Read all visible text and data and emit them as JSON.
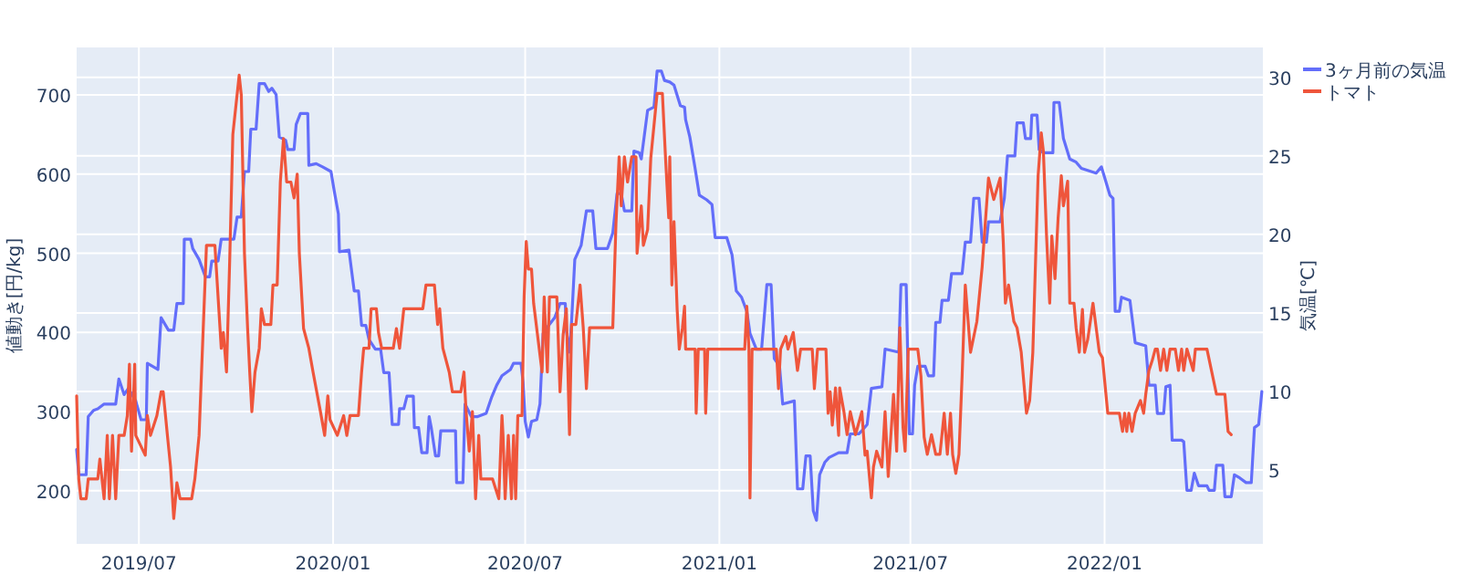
{
  "chart_data": {
    "type": "line",
    "ylabel": "値動き[円/kg]",
    "y2label": "気温[℃]",
    "grid": true,
    "legend": "top right",
    "xlim": [
      "2019-05-03",
      "2022-05-31"
    ],
    "xticks": [
      {
        "value": "2019-07-01",
        "label": "2019/07"
      },
      {
        "value": "2020-01-01",
        "label": "2020/01"
      },
      {
        "value": "2020-07-01",
        "label": "2020/07"
      },
      {
        "value": "2021-01-01",
        "label": "2021/01"
      },
      {
        "value": "2021-07-01",
        "label": "2021/07"
      },
      {
        "value": "2022-01-01",
        "label": "2022/01"
      }
    ],
    "ylim": [
      133,
      760
    ],
    "yticks": [
      200,
      300,
      400,
      500,
      600,
      700
    ],
    "y2lim": [
      0.3,
      31.9
    ],
    "y2ticks": [
      5,
      10,
      15,
      20,
      25,
      30
    ],
    "series": [
      {
        "name": "3ヶ月前の気温",
        "color": "#636efa",
        "axis": "y2",
        "x": [
          "2019-05-03",
          "2019-05-05",
          "2019-05-12",
          "2019-05-14",
          "2019-05-19",
          "2019-05-23",
          "2019-05-29",
          "2019-06-09",
          "2019-06-12",
          "2019-06-17",
          "2019-06-21",
          "2019-06-28",
          "2019-07-03",
          "2019-07-08",
          "2019-07-09",
          "2019-07-19",
          "2019-07-22",
          "2019-07-29",
          "2019-08-03",
          "2019-08-06",
          "2019-08-12",
          "2019-08-13",
          "2019-08-19",
          "2019-08-21",
          "2019-08-27",
          "2019-09-02",
          "2019-09-06",
          "2019-09-08",
          "2019-09-14",
          "2019-09-17",
          "2019-09-29",
          "2019-10-02",
          "2019-10-06",
          "2019-10-09",
          "2019-10-13",
          "2019-10-15",
          "2019-10-20",
          "2019-10-23",
          "2019-10-28",
          "2019-11-01",
          "2019-11-04",
          "2019-11-08",
          "2019-11-11",
          "2019-11-17",
          "2019-11-19",
          "2019-11-25",
          "2019-11-27",
          "2019-12-01",
          "2019-12-08",
          "2019-12-09",
          "2019-12-16",
          "2019-12-22",
          "2019-12-30",
          "2020-01-02",
          "2020-01-06",
          "2020-01-07",
          "2020-01-16",
          "2020-01-21",
          "2020-01-25",
          "2020-01-28",
          "2020-02-01",
          "2020-02-04",
          "2020-02-10",
          "2020-02-15",
          "2020-02-18",
          "2020-02-23",
          "2020-02-26",
          "2020-03-03",
          "2020-03-04",
          "2020-03-08",
          "2020-03-11",
          "2020-03-17",
          "2020-03-18",
          "2020-03-22",
          "2020-03-25",
          "2020-03-30",
          "2020-04-01",
          "2020-04-03",
          "2020-04-07",
          "2020-04-10",
          "2020-04-12",
          "2020-04-26",
          "2020-04-27",
          "2020-05-03",
          "2020-05-05",
          "2020-05-11",
          "2020-05-17",
          "2020-05-25",
          "2020-05-30",
          "2020-06-04",
          "2020-06-09",
          "2020-06-17",
          "2020-06-20",
          "2020-06-27",
          "2020-06-29",
          "2020-07-01",
          "2020-07-04",
          "2020-07-07",
          "2020-07-12",
          "2020-07-15",
          "2020-07-18",
          "2020-07-22",
          "2020-07-29",
          "2020-08-03",
          "2020-08-08",
          "2020-08-09",
          "2020-08-12",
          "2020-08-14",
          "2020-08-17",
          "2020-08-23",
          "2020-08-28",
          "2020-09-03",
          "2020-09-06",
          "2020-09-17",
          "2020-09-22",
          "2020-09-26",
          "2020-09-30",
          "2020-10-03",
          "2020-10-10",
          "2020-10-12",
          "2020-10-17",
          "2020-10-19",
          "2020-10-25",
          "2020-10-31",
          "2020-11-03",
          "2020-11-07",
          "2020-11-10",
          "2020-11-15",
          "2020-11-19",
          "2020-11-25",
          "2020-11-29",
          "2020-11-30",
          "2020-12-04",
          "2020-12-09",
          "2020-12-13",
          "2020-12-20",
          "2020-12-25",
          "2020-12-28",
          "2021-01-08",
          "2021-01-13",
          "2021-01-17",
          "2021-01-22",
          "2021-01-27",
          "2021-01-30",
          "2021-02-05",
          "2021-02-10",
          "2021-02-15",
          "2021-02-19",
          "2021-02-22",
          "2021-02-27",
          "2021-03-02",
          "2021-03-13",
          "2021-03-16",
          "2021-03-21",
          "2021-03-24",
          "2021-03-28",
          "2021-03-31",
          "2021-04-03",
          "2021-04-06",
          "2021-04-11",
          "2021-04-15",
          "2021-04-24",
          "2021-05-02",
          "2021-05-05",
          "2021-05-13",
          "2021-05-16",
          "2021-05-21",
          "2021-05-25",
          "2021-06-04",
          "2021-06-07",
          "2021-06-20",
          "2021-06-22",
          "2021-06-27",
          "2021-06-30",
          "2021-07-03",
          "2021-07-05",
          "2021-07-08",
          "2021-07-15",
          "2021-07-18",
          "2021-07-23",
          "2021-07-25",
          "2021-07-29",
          "2021-07-31",
          "2021-08-06",
          "2021-08-09",
          "2021-08-19",
          "2021-08-22",
          "2021-08-27",
          "2021-08-30",
          "2021-09-04",
          "2021-09-07",
          "2021-09-11",
          "2021-09-13",
          "2021-09-24",
          "2021-09-28",
          "2021-10-01",
          "2021-10-08",
          "2021-10-10",
          "2021-10-16",
          "2021-10-18",
          "2021-10-23",
          "2021-10-24",
          "2021-10-29",
          "2021-10-31",
          "2021-11-04",
          "2021-11-13",
          "2021-11-14",
          "2021-11-19",
          "2021-11-23",
          "2021-11-29",
          "2021-12-05",
          "2021-12-10",
          "2021-12-24",
          "2021-12-29",
          "2022-01-02",
          "2022-01-06",
          "2022-01-09",
          "2022-01-11",
          "2022-01-15",
          "2022-01-17",
          "2022-01-25",
          "2022-01-30",
          "2022-02-09",
          "2022-02-12",
          "2022-02-18",
          "2022-02-20",
          "2022-02-26",
          "2022-02-28",
          "2022-03-04",
          "2022-03-06",
          "2022-03-15",
          "2022-03-17",
          "2022-03-20",
          "2022-03-24",
          "2022-03-27",
          "2022-03-31",
          "2022-04-08",
          "2022-04-10",
          "2022-04-15",
          "2022-04-17",
          "2022-04-23",
          "2022-04-25",
          "2022-05-01",
          "2022-05-04",
          "2022-05-09",
          "2022-05-15",
          "2022-05-20",
          "2022-05-23",
          "2022-05-27",
          "2022-05-30"
        ],
        "values": [
          6.3,
          4.7,
          4.7,
          8.4,
          8.8,
          8.9,
          9.2,
          9.2,
          10.8,
          9.8,
          10.2,
          9.4,
          8.2,
          8.2,
          11.8,
          11.4,
          14.7,
          13.9,
          13.9,
          15.6,
          15.6,
          19.7,
          19.7,
          19.1,
          18.4,
          17.3,
          17.3,
          18.3,
          18.3,
          19.7,
          19.7,
          21.1,
          21.1,
          24.0,
          24.0,
          26.7,
          26.7,
          29.6,
          29.6,
          29.1,
          29.3,
          28.9,
          26.2,
          26.0,
          25.4,
          25.4,
          27.0,
          27.7,
          27.7,
          24.4,
          24.5,
          24.3,
          24.0,
          22.8,
          21.3,
          18.9,
          19.0,
          16.4,
          16.4,
          14.2,
          14.2,
          13.3,
          12.7,
          12.7,
          11.2,
          11.2,
          7.9,
          7.9,
          8.9,
          8.9,
          9.7,
          9.7,
          7.7,
          7.7,
          6.1,
          6.1,
          8.4,
          7.7,
          5.9,
          5.9,
          7.5,
          7.5,
          4.2,
          4.2,
          9.2,
          8.4,
          8.4,
          8.6,
          9.6,
          10.4,
          11.0,
          11.4,
          11.8,
          11.8,
          10.6,
          8.1,
          7.1,
          8.1,
          8.2,
          9.2,
          13.7,
          14.1,
          14.7,
          15.6,
          15.6,
          13.9,
          12.5,
          14.5,
          18.4,
          19.3,
          21.5,
          21.5,
          19.1,
          19.1,
          20.1,
          22.6,
          22.6,
          21.5,
          21.5,
          25.3,
          25.2,
          24.8,
          27.9,
          28.1,
          30.4,
          30.4,
          29.8,
          29.7,
          29.5,
          28.2,
          28.1,
          27.3,
          26.2,
          24.2,
          22.5,
          22.2,
          21.9,
          19.8,
          19.8,
          18.7,
          16.4,
          16.0,
          15.1,
          13.7,
          12.7,
          12.7,
          16.8,
          16.8,
          12.1,
          11.6,
          9.2,
          9.4,
          3.8,
          3.8,
          5.9,
          5.9,
          2.4,
          1.8,
          4.7,
          5.5,
          5.8,
          6.1,
          6.1,
          7.3,
          7.3,
          7.5,
          7.9,
          10.2,
          10.3,
          12.7,
          12.5,
          16.8,
          16.8,
          7.3,
          7.3,
          10.4,
          11.6,
          11.6,
          11.0,
          11.0,
          14.4,
          14.4,
          15.8,
          15.8,
          17.5,
          17.5,
          19.5,
          19.5,
          22.3,
          22.3,
          19.5,
          19.5,
          20.8,
          20.8,
          22.3,
          25.0,
          25.0,
          27.1,
          27.1,
          26.1,
          26.1,
          27.6,
          27.6,
          25.4,
          25.2,
          25.2,
          28.4,
          28.4,
          26.1,
          24.8,
          24.6,
          24.2,
          23.9,
          24.3,
          23.4,
          22.5,
          22.3,
          15.1,
          15.1,
          16.0,
          15.8,
          13.1,
          12.9,
          10.4,
          10.4,
          8.6,
          8.6,
          10.3,
          10.4,
          6.9,
          6.9,
          6.8,
          3.7,
          3.7,
          4.8,
          4.0,
          4.0,
          3.7,
          3.7,
          5.3,
          5.3,
          3.3,
          3.3,
          4.7,
          4.5,
          4.2,
          4.2,
          7.7,
          7.9,
          10.0
        ]
      },
      {
        "name": "トマト",
        "color": "#ef553b",
        "x": [
          "2019-05-03",
          "2019-05-05",
          "2019-05-07",
          "2019-05-12",
          "2019-05-14",
          "2019-05-23",
          "2019-05-25",
          "2019-05-29",
          "2019-06-01",
          "2019-06-03",
          "2019-06-06",
          "2019-06-09",
          "2019-06-12",
          "2019-06-17",
          "2019-06-20",
          "2019-06-22",
          "2019-06-24",
          "2019-06-27",
          "2019-06-28",
          "2019-07-07",
          "2019-07-09",
          "2019-07-12",
          "2019-07-18",
          "2019-07-22",
          "2019-07-24",
          "2019-07-28",
          "2019-07-31",
          "2019-08-03",
          "2019-08-06",
          "2019-08-09",
          "2019-08-20",
          "2019-08-23",
          "2019-08-27",
          "2019-09-03",
          "2019-09-11",
          "2019-09-17",
          "2019-09-19",
          "2019-09-22",
          "2019-09-25",
          "2019-09-28",
          "2019-10-04",
          "2019-10-06",
          "2019-10-09",
          "2019-10-12",
          "2019-10-14",
          "2019-10-16",
          "2019-10-19",
          "2019-10-23",
          "2019-10-25",
          "2019-10-28",
          "2019-11-03",
          "2019-11-05",
          "2019-11-09",
          "2019-11-12",
          "2019-11-15",
          "2019-11-18",
          "2019-11-22",
          "2019-11-25",
          "2019-11-28",
          "2019-11-30",
          "2019-12-04",
          "2019-12-09",
          "2019-12-13",
          "2019-12-20",
          "2019-12-24",
          "2019-12-27",
          "2019-12-29",
          "2020-01-05",
          "2020-01-11",
          "2020-01-14",
          "2020-01-17",
          "2020-01-25",
          "2020-01-28",
          "2020-01-30",
          "2020-02-04",
          "2020-02-06",
          "2020-02-11",
          "2020-02-13",
          "2020-02-16",
          "2020-02-27",
          "2020-03-01",
          "2020-03-04",
          "2020-03-08",
          "2020-03-26",
          "2020-03-29",
          "2020-04-06",
          "2020-04-09",
          "2020-04-11",
          "2020-04-14",
          "2020-04-20",
          "2020-04-23",
          "2020-05-01",
          "2020-05-04",
          "2020-05-06",
          "2020-05-09",
          "2020-05-12",
          "2020-05-15",
          "2020-05-18",
          "2020-05-20",
          "2020-05-31",
          "2020-06-06",
          "2020-06-09",
          "2020-06-10",
          "2020-06-12",
          "2020-06-15",
          "2020-06-18",
          "2020-06-20",
          "2020-06-22",
          "2020-06-24",
          "2020-06-28",
          "2020-06-30",
          "2020-07-02",
          "2020-07-04",
          "2020-07-07",
          "2020-07-09",
          "2020-07-17",
          "2020-07-19",
          "2020-07-22",
          "2020-07-24",
          "2020-07-31",
          "2020-08-03",
          "2020-08-06",
          "2020-08-09",
          "2020-08-12",
          "2020-08-14",
          "2020-08-18",
          "2020-08-22",
          "2020-08-25",
          "2020-08-28",
          "2020-08-31",
          "2020-09-22",
          "2020-09-25",
          "2020-09-28",
          "2020-09-30",
          "2020-10-03",
          "2020-10-06",
          "2020-10-10",
          "2020-10-14",
          "2020-10-15",
          "2020-10-19",
          "2020-10-21",
          "2020-10-25",
          "2020-10-28",
          "2020-11-03",
          "2020-11-08",
          "2020-11-11",
          "2020-11-14",
          "2020-11-15",
          "2020-11-17",
          "2020-11-19",
          "2020-11-22",
          "2020-11-24",
          "2020-11-27",
          "2020-11-29",
          "2020-11-30",
          "2020-12-09",
          "2020-12-10",
          "2020-12-12",
          "2020-12-18",
          "2020-12-19",
          "2020-12-21",
          "2021-01-25",
          "2021-01-27",
          "2021-01-29",
          "2021-01-30",
          "2021-02-01",
          "2021-02-24",
          "2021-02-26",
          "2021-02-28",
          "2021-03-05",
          "2021-03-07",
          "2021-03-12",
          "2021-03-16",
          "2021-03-19",
          "2021-03-30",
          "2021-04-01",
          "2021-04-04",
          "2021-04-12",
          "2021-04-14",
          "2021-04-16",
          "2021-04-18",
          "2021-04-21",
          "2021-04-24",
          "2021-04-25",
          "2021-04-29",
          "2021-05-02",
          "2021-05-05",
          "2021-05-10",
          "2021-05-16",
          "2021-05-19",
          "2021-05-21",
          "2021-05-25",
          "2021-05-27",
          "2021-05-30",
          "2021-06-04",
          "2021-06-07",
          "2021-06-10",
          "2021-06-12",
          "2021-06-15",
          "2021-06-18",
          "2021-06-21",
          "2021-06-24",
          "2021-06-26",
          "2021-06-29",
          "2021-07-08",
          "2021-07-11",
          "2021-07-14",
          "2021-07-17",
          "2021-07-21",
          "2021-07-25",
          "2021-07-29",
          "2021-08-02",
          "2021-08-05",
          "2021-08-08",
          "2021-08-10",
          "2021-08-13",
          "2021-08-16",
          "2021-08-19",
          "2021-08-22",
          "2021-08-27",
          "2021-09-02",
          "2021-09-07",
          "2021-09-13",
          "2021-09-18",
          "2021-09-24",
          "2021-09-27",
          "2021-09-29",
          "2021-10-02",
          "2021-10-07",
          "2021-10-10",
          "2021-10-14",
          "2021-10-19",
          "2021-10-22",
          "2021-10-25",
          "2021-10-30",
          "2021-11-02",
          "2021-11-04",
          "2021-11-07",
          "2021-11-10",
          "2021-11-12",
          "2021-11-15",
          "2021-11-18",
          "2021-11-21",
          "2021-11-23",
          "2021-11-27",
          "2021-11-29",
          "2021-12-03",
          "2021-12-05",
          "2021-12-08",
          "2021-12-11",
          "2021-12-13",
          "2021-12-16",
          "2021-12-21",
          "2021-12-24",
          "2021-12-27",
          "2021-12-30",
          "2022-01-04",
          "2022-01-15",
          "2022-01-18",
          "2022-01-20",
          "2022-01-22",
          "2022-01-24",
          "2022-01-27",
          "2022-01-30",
          "2022-02-04",
          "2022-02-07",
          "2022-02-09",
          "2022-02-12",
          "2022-02-15",
          "2022-02-18",
          "2022-02-20",
          "2022-02-23",
          "2022-02-26",
          "2022-03-01",
          "2022-03-04",
          "2022-03-09",
          "2022-03-12",
          "2022-03-15",
          "2022-03-17",
          "2022-03-20",
          "2022-03-26",
          "2022-03-28",
          "2022-04-08",
          "2022-04-17",
          "2022-04-25",
          "2022-04-28",
          "2022-05-01"
        ],
        "values": [
          320,
          215,
          190,
          190,
          215,
          215,
          240,
          190,
          270,
          190,
          270,
          190,
          270,
          270,
          295,
          360,
          250,
          360,
          270,
          245,
          295,
          270,
          295,
          325,
          325,
          270,
          230,
          165,
          210,
          190,
          190,
          215,
          270,
          510,
          510,
          380,
          400,
          350,
          490,
          650,
          725,
          700,
          500,
          405,
          350,
          300,
          350,
          380,
          430,
          410,
          410,
          460,
          460,
          590,
          645,
          590,
          590,
          570,
          600,
          500,
          405,
          380,
          350,
          300,
          270,
          320,
          290,
          270,
          295,
          270,
          295,
          295,
          350,
          380,
          380,
          430,
          430,
          400,
          380,
          380,
          405,
          380,
          430,
          430,
          460,
          460,
          410,
          430,
          380,
          350,
          325,
          325,
          350,
          300,
          250,
          300,
          190,
          270,
          215,
          215,
          190,
          295,
          270,
          190,
          270,
          190,
          270,
          190,
          295,
          295,
          445,
          515,
          480,
          480,
          437,
          350,
          445,
          350,
          445,
          445,
          325,
          398,
          430,
          271,
          410,
          410,
          460,
          406,
          329,
          406,
          406,
          537,
          622,
          560,
          622,
          590,
          622,
          622,
          500,
          560,
          510,
          530,
          620,
          702,
          702,
          620,
          545,
          622,
          460,
          540,
          429,
          379,
          406,
          433,
          379,
          379,
          298,
          379,
          379,
          298,
          379,
          379,
          433,
          379,
          191,
          379,
          379,
          329,
          379,
          395,
          379,
          400,
          352,
          379,
          379,
          329,
          379,
          379,
          298,
          325,
          283,
          330,
          270,
          330,
          300,
          271,
          300,
          271,
          300,
          245,
          250,
          191,
          230,
          250,
          230,
          300,
          218,
          260,
          322,
          250,
          406,
          280,
          250,
          379,
          379,
          345,
          268,
          246,
          271,
          246,
          246,
          298,
          246,
          298,
          246,
          222,
          246,
          345,
          460,
          375,
          414,
          483,
          595,
          568,
          595,
          514,
          437,
          460,
          414,
          406,
          375,
          298,
          314,
          375,
          598,
          652,
          629,
          522,
          437,
          522,
          468,
          545,
          598,
          560,
          591,
          437,
          437,
          406,
          375,
          429,
          375,
          391,
          437,
          406,
          375,
          368,
          298,
          298,
          275,
          298,
          275,
          298,
          275,
          298,
          314,
          298,
          322,
          352,
          364,
          379,
          379,
          352,
          379,
          352,
          379,
          379,
          352,
          379,
          352,
          379,
          352,
          379,
          379,
          322,
          322,
          275,
          271
        ]
      }
    ]
  }
}
